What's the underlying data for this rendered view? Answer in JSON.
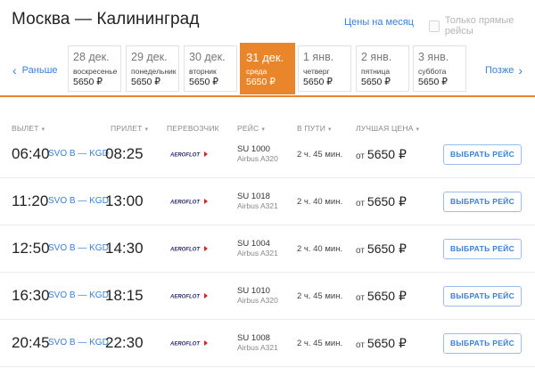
{
  "header": {
    "title": "Москва — Калининград",
    "price_calendar_link": "Цены на месяц",
    "direct_only_label": "Только прямые рейсы",
    "direct_only_checked": false
  },
  "date_nav": {
    "prev_label": "Раньше",
    "next_label": "Позже",
    "days": [
      {
        "date": "28 дек.",
        "weekday": "воскресенье",
        "price": "5650 ₽",
        "active": false
      },
      {
        "date": "29 дек.",
        "weekday": "понедельник",
        "price": "5650 ₽",
        "active": false
      },
      {
        "date": "30 дек.",
        "weekday": "вторник",
        "price": "5650 ₽",
        "active": false
      },
      {
        "date": "31 дек.",
        "weekday": "среда",
        "price": "5650 ₽",
        "active": true
      },
      {
        "date": "1 янв.",
        "weekday": "четверг",
        "price": "5650 ₽",
        "active": false
      },
      {
        "date": "2 янв.",
        "weekday": "пятница",
        "price": "5650 ₽",
        "active": false
      },
      {
        "date": "3 янв.",
        "weekday": "суббота",
        "price": "5650 ₽",
        "active": false
      }
    ]
  },
  "columns": {
    "departure": "ВЫЛЕТ",
    "arrival": "ПРИЛЕТ",
    "carrier": "ПЕРЕВОЗЧИК",
    "flight": "РЕЙС",
    "duration": "В ПУТИ",
    "best_price": "ЛУЧШАЯ ЦЕНА"
  },
  "flights": [
    {
      "departure": "06:40",
      "airports": "SVO B — KGD",
      "arrival": "08:25",
      "carrier_logo": "aeroflot-logo",
      "flight_no": "SU 1000",
      "aircraft": "Airbus A320",
      "duration": "2 ч. 45 мин.",
      "price_prefix": "от",
      "price": "5650 ₽",
      "button": "ВЫБРАТЬ РЕЙС"
    },
    {
      "departure": "11:20",
      "airports": "SVO B — KGD",
      "arrival": "13:00",
      "carrier_logo": "aeroflot-logo",
      "flight_no": "SU 1018",
      "aircraft": "Airbus A321",
      "duration": "2 ч. 40 мин.",
      "price_prefix": "от",
      "price": "5650 ₽",
      "button": "ВЫБРАТЬ РЕЙС"
    },
    {
      "departure": "12:50",
      "airports": "SVO B — KGD",
      "arrival": "14:30",
      "carrier_logo": "aeroflot-logo",
      "flight_no": "SU 1004",
      "aircraft": "Airbus A321",
      "duration": "2 ч. 40 мин.",
      "price_prefix": "от",
      "price": "5650 ₽",
      "button": "ВЫБРАТЬ РЕЙС"
    },
    {
      "departure": "16:30",
      "airports": "SVO B — KGD",
      "arrival": "18:15",
      "carrier_logo": "aeroflot-logo",
      "flight_no": "SU 1010",
      "aircraft": "Airbus A320",
      "duration": "2 ч. 45 мин.",
      "price_prefix": "от",
      "price": "5650 ₽",
      "button": "ВЫБРАТЬ РЕЙС"
    },
    {
      "departure": "20:45",
      "airports": "SVO B — KGD",
      "arrival": "22:30",
      "carrier_logo": "aeroflot-logo",
      "flight_no": "SU 1008",
      "aircraft": "Airbus A321",
      "duration": "2 ч. 45 мин.",
      "price_prefix": "от",
      "price": "5650 ₽",
      "button": "ВЫБРАТЬ РЕЙС"
    }
  ],
  "colors": {
    "accent": "#e9862c",
    "link": "#3b7fd4"
  }
}
